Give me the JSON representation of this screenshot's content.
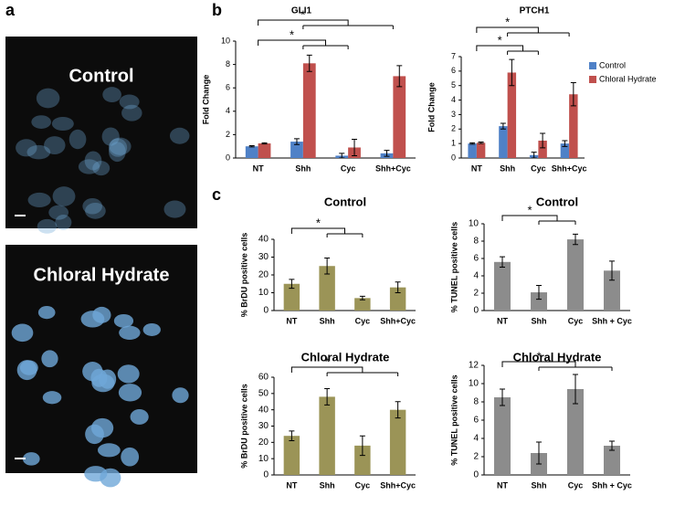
{
  "figure": {
    "panel_labels": [
      "a",
      "b",
      "c"
    ],
    "images": [
      {
        "label": "Control"
      },
      {
        "label": "Chloral Hydrate"
      }
    ]
  },
  "chart_data": [
    {
      "type": "bar",
      "title": "GLI1",
      "y_label": "Fold Change",
      "categories": [
        "NT",
        "Shh",
        "Cyc",
        "Shh+Cyc"
      ],
      "series": [
        {
          "name": "Control",
          "color": "#4f81c7",
          "values": [
            1.0,
            1.4,
            0.2,
            0.4
          ],
          "errors": [
            0.05,
            0.25,
            0.2,
            0.25
          ]
        },
        {
          "name": "Chloral Hydrate",
          "color": "#c0504d",
          "values": [
            1.25,
            8.1,
            0.9,
            7.0
          ],
          "errors": [
            0.05,
            0.7,
            0.7,
            0.9
          ]
        }
      ],
      "ylim": [
        0,
        10
      ],
      "yticks": [
        0,
        2,
        4,
        6,
        8,
        10
      ],
      "annotations": [
        "*",
        "*"
      ]
    },
    {
      "type": "bar",
      "title": "PTCH1",
      "y_label": "Fold Change",
      "categories": [
        "NT",
        "Shh",
        "Cyc",
        "Shh+Cyc"
      ],
      "series": [
        {
          "name": "Control",
          "color": "#4f81c7",
          "values": [
            1.0,
            2.2,
            0.2,
            1.0
          ],
          "errors": [
            0.05,
            0.2,
            0.2,
            0.2
          ]
        },
        {
          "name": "Chloral Hydrate",
          "color": "#c0504d",
          "values": [
            1.05,
            5.9,
            1.2,
            4.4
          ],
          "errors": [
            0.05,
            0.9,
            0.5,
            0.8
          ]
        }
      ],
      "ylim": [
        0,
        7
      ],
      "yticks": [
        0,
        1,
        2,
        3,
        4,
        5,
        6,
        7
      ],
      "legend": "right",
      "annotations": [
        "*",
        "*"
      ]
    },
    {
      "type": "bar",
      "title": "Control",
      "y_label": "% BrDU positive cells",
      "categories": [
        "NT",
        "Shh",
        "Cyc",
        "Shh+Cyc"
      ],
      "color": "#9b9457",
      "values": [
        15,
        25,
        7,
        13
      ],
      "errors": [
        2.5,
        4.5,
        1,
        3
      ],
      "ylim": [
        0,
        40
      ],
      "yticks": [
        0,
        10,
        20,
        30,
        40
      ],
      "annotations": [
        "*"
      ]
    },
    {
      "type": "bar",
      "title": "Control",
      "y_label": "% TUNEL positive cells",
      "categories": [
        "NT",
        "Shh",
        "Cyc",
        "Shh + Cyc"
      ],
      "color": "#8c8c8c",
      "values": [
        5.6,
        2.1,
        8.2,
        4.6
      ],
      "errors": [
        0.6,
        0.8,
        0.6,
        1.1
      ],
      "ylim": [
        0,
        10
      ],
      "yticks": [
        0,
        2,
        4,
        6,
        8,
        10
      ],
      "annotations": [
        "*"
      ]
    },
    {
      "type": "bar",
      "title": "Chloral Hydrate",
      "y_label": "% BrDU positive cells",
      "categories": [
        "NT",
        "Shh",
        "Cyc",
        "Shh+Cyc"
      ],
      "color": "#9b9457",
      "values": [
        24,
        48,
        18,
        40
      ],
      "errors": [
        3,
        5,
        6,
        5
      ],
      "ylim": [
        0,
        60
      ],
      "yticks": [
        0,
        10,
        20,
        30,
        40,
        50,
        60
      ],
      "annotations": [
        "*"
      ]
    },
    {
      "type": "bar",
      "title": "Chloral Hydrate",
      "y_label": "% TUNEL positive cells",
      "categories": [
        "NT",
        "Shh",
        "Cyc",
        "Shh + Cyc"
      ],
      "color": "#8c8c8c",
      "values": [
        8.5,
        2.4,
        9.4,
        3.2
      ],
      "errors": [
        0.9,
        1.2,
        1.6,
        0.5
      ],
      "ylim": [
        0,
        12
      ],
      "yticks": [
        0,
        2,
        4,
        6,
        8,
        10,
        12
      ],
      "annotations": [
        "*"
      ]
    }
  ]
}
